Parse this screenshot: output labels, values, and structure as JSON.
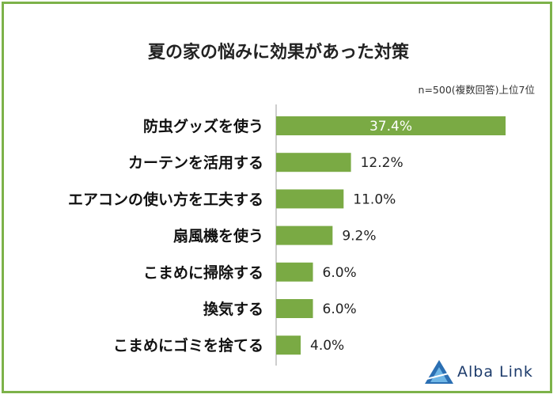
{
  "chart_data": {
    "type": "bar",
    "orientation": "horizontal",
    "title": "夏の家の悩みに効果があった対策",
    "note": "n=500(複数回答)上位7位",
    "categories": [
      "防虫グッズを使う",
      "カーテンを活用する",
      "エアコンの使い方を工夫する",
      "扇風機を使う",
      "こまめに掃除する",
      "換気する",
      "こまめにゴミを捨てる"
    ],
    "values": [
      37.4,
      12.2,
      11.0,
      9.2,
      6.0,
      6.0,
      4.0
    ],
    "value_labels": [
      "37.4%",
      "12.2%",
      "11.0%",
      "9.2%",
      "6.0%",
      "6.0%",
      "4.0%"
    ],
    "grid": false,
    "bar_color": "#7aaa44"
  },
  "brand": {
    "name": "Alba Link",
    "logo_icon": "alba-link-logo-icon",
    "logo_color": "#2b6fb3"
  },
  "frame_color": "#7db24a"
}
